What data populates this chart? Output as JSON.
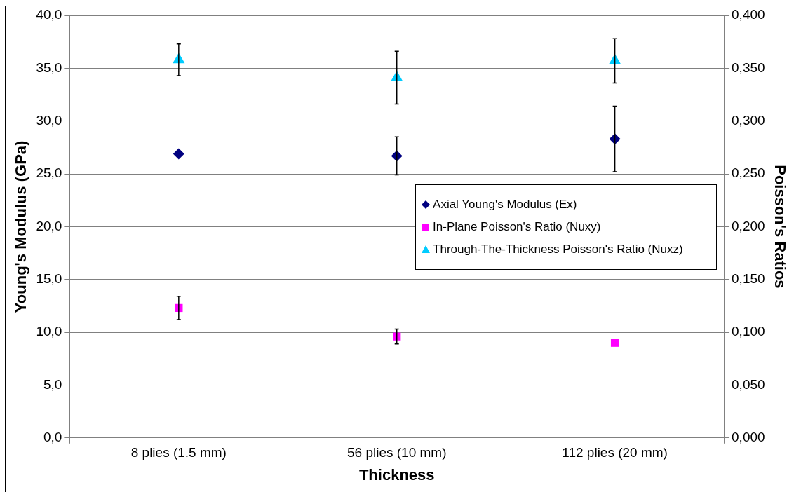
{
  "chart_data": {
    "type": "scatter",
    "xlabel": "Thickness",
    "ylabel": "Young's Modulus (GPa)",
    "y2label": "Poisson's Ratios",
    "categories": [
      "8 plies (1.5 mm)",
      "56 plies (10 mm)",
      "112 plies (20 mm)"
    ],
    "ylim": [
      0,
      40
    ],
    "yticks": [
      {
        "value": 0,
        "label": "0,0"
      },
      {
        "value": 5,
        "label": "5,0"
      },
      {
        "value": 10,
        "label": "10,0"
      },
      {
        "value": 15,
        "label": "15,0"
      },
      {
        "value": 20,
        "label": "20,0"
      },
      {
        "value": 25,
        "label": "25,0"
      },
      {
        "value": 30,
        "label": "30,0"
      },
      {
        "value": 35,
        "label": "35,0"
      },
      {
        "value": 40,
        "label": "40,0"
      }
    ],
    "y2lim": [
      0,
      0.4
    ],
    "y2ticks": [
      {
        "value": 0,
        "label": "0,000"
      },
      {
        "value": 0.05,
        "label": "0,050"
      },
      {
        "value": 0.1,
        "label": "0,100"
      },
      {
        "value": 0.15,
        "label": "0,150"
      },
      {
        "value": 0.2,
        "label": "0,200"
      },
      {
        "value": 0.25,
        "label": "0,250"
      },
      {
        "value": 0.3,
        "label": "0,300"
      },
      {
        "value": 0.35,
        "label": "0,350"
      },
      {
        "value": 0.4,
        "label": "0,400"
      }
    ],
    "grid": "y",
    "legend": "right",
    "series": [
      {
        "name": "Axial Young's Modulus (Ex)",
        "color": "#000080",
        "marker": "diamond",
        "values": [
          26.9,
          26.7,
          28.3
        ],
        "errors": [
          null,
          1.8,
          3.1
        ]
      },
      {
        "name": "In-Plane Poisson's Ratio (Nuxy)",
        "color": "#ff00ff",
        "marker": "square",
        "axis": "y2",
        "values": [
          0.123,
          0.096,
          0.09
        ],
        "errors": [
          0.011,
          0.007,
          null
        ]
      },
      {
        "name": "Through-The-Thickness Poisson's Ratio (Nuxz)",
        "color": "#00ccff",
        "marker": "triangle",
        "axis": "y2",
        "values": [
          0.358,
          0.341,
          0.357
        ],
        "errors": [
          0.015,
          0.025,
          0.021
        ]
      }
    ]
  }
}
